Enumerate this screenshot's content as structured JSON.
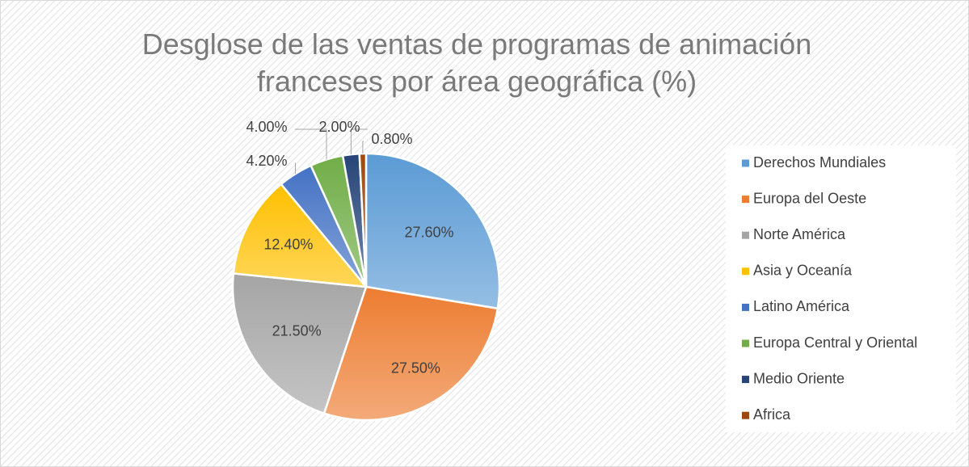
{
  "chart_data": {
    "type": "pie",
    "title": "Desglose de las ventas de programas de animación franceses por área geográfica (%)",
    "categories": [
      "Derechos Mundiales",
      "Europa del Oeste",
      "Norte América",
      "Asia y Oceanía",
      "Latino América",
      "Europa Central y Oriental",
      "Medio Oriente",
      "Africa"
    ],
    "values": [
      27.6,
      27.5,
      21.5,
      12.4,
      4.2,
      4.0,
      2.0,
      0.8
    ],
    "value_labels": [
      "27.60%",
      "27.50%",
      "21.50%",
      "12.40%",
      "4.20%",
      "4.00%",
      "2.00%",
      "0.80%"
    ],
    "colors": [
      "#5b9bd5",
      "#ed7d31",
      "#a5a5a5",
      "#ffc000",
      "#4472c4",
      "#70ad47",
      "#264478",
      "#9e480e"
    ],
    "legend": "right"
  }
}
